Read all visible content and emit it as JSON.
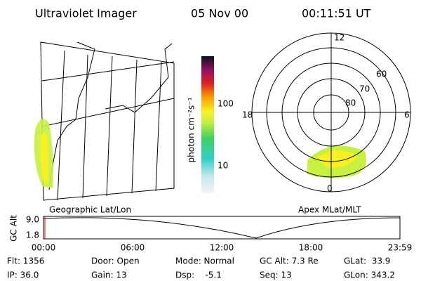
{
  "header": {
    "title": "Ultraviolet Imager",
    "date": "05 Nov 00",
    "time": "00:11:51 UT"
  },
  "colorbar": {
    "label": "photon cm⁻²s⁻¹",
    "ticks": [
      "100",
      "10"
    ]
  },
  "polar": {
    "mlt_labels": [
      "12",
      "18",
      "6",
      "0"
    ],
    "lat_labels": [
      "60",
      "70",
      "80"
    ]
  },
  "panels": {
    "left": "Geographic Lat/Lon",
    "right": "Apex MLat/MLT"
  },
  "altitude_plot": {
    "label": "GC Alt",
    "y_labels": [
      "9.0",
      "1.8"
    ],
    "time_labels": [
      "00:00",
      "06:00",
      "12:00",
      "18:00",
      "23:59"
    ]
  },
  "status": {
    "rows": [
      [
        "Flt: 1356",
        "Door: Open",
        "Mode: Normal",
        "GC Alt: 7.3 Re",
        "GLat:  33.9"
      ],
      [
        "IP: 36.0",
        "Gain: 13",
        "Dsp:    -5.1",
        "Seq: 13",
        "GLon: 343.2"
      ]
    ]
  }
}
